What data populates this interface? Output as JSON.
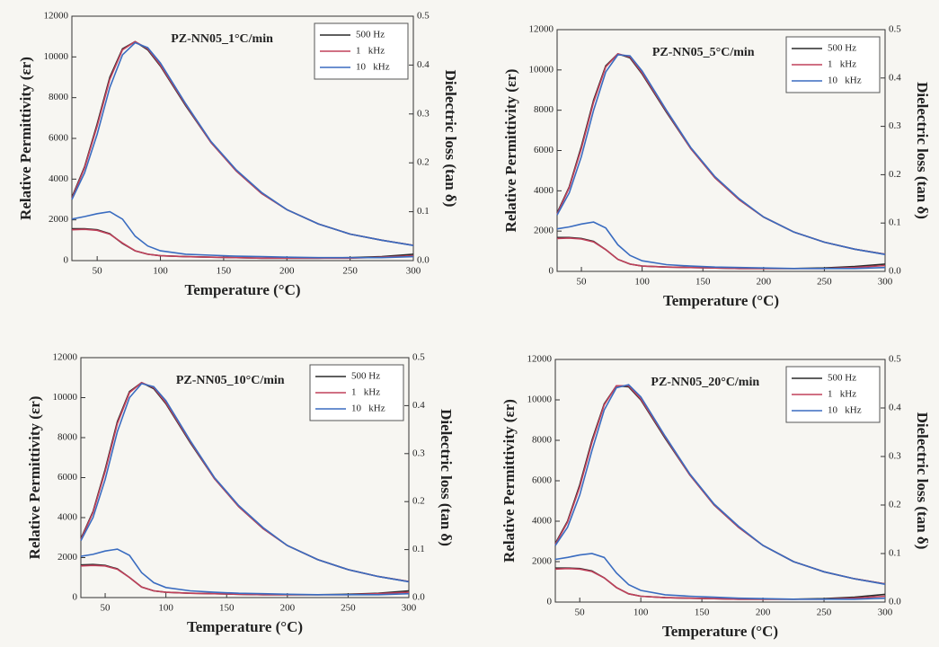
{
  "chart_data": [
    {
      "type": "line",
      "title": "PZ-NN05_1°C/min",
      "xlabel": "Temperature (°C)",
      "ylabel": "Relative Permittivity (εr)",
      "y2label": "Dielectric loss (tan δ)",
      "x": [
        30,
        40,
        50,
        60,
        70,
        80,
        90,
        100,
        120,
        140,
        160,
        180,
        200,
        225,
        250,
        275,
        300
      ],
      "xlim": [
        30,
        300
      ],
      "xticks": [
        50,
        100,
        150,
        200,
        250,
        300
      ],
      "ylim": [
        0,
        12000
      ],
      "yticks": [
        0,
        2000,
        4000,
        6000,
        8000,
        10000,
        12000
      ],
      "y2lim": [
        0,
        0.5
      ],
      "y2ticks": [
        {
          "value": 0,
          "label": "0.0"
        },
        0.1,
        0.2,
        0.3,
        0.4,
        0.5
      ],
      "legend": "top-right",
      "series": [
        {
          "name": "500 Hz",
          "color": "#2a2a2a",
          "values": [
            3100,
            4600,
            6700,
            9000,
            10400,
            10750,
            10350,
            9550,
            7600,
            5800,
            4400,
            3300,
            2500,
            1800,
            1300,
            1000,
            750
          ],
          "loss_values": [
            0.065,
            0.065,
            0.063,
            0.055,
            0.035,
            0.02,
            0.013,
            0.01,
            0.008,
            0.007,
            0.006,
            0.005,
            0.005,
            0.005,
            0.006,
            0.008,
            0.013
          ]
        },
        {
          "name": "1   kHz",
          "color": "#c0405a",
          "values": [
            3050,
            4550,
            6600,
            8900,
            10350,
            10750,
            10400,
            9600,
            7650,
            5800,
            4400,
            3300,
            2500,
            1800,
            1300,
            1000,
            750
          ],
          "loss_values": [
            0.063,
            0.064,
            0.062,
            0.054,
            0.036,
            0.02,
            0.013,
            0.01,
            0.008,
            0.007,
            0.006,
            0.005,
            0.005,
            0.005,
            0.005,
            0.007,
            0.01
          ]
        },
        {
          "name": "10   kHz",
          "color": "#3a6cc0",
          "values": [
            3000,
            4300,
            6200,
            8500,
            10100,
            10700,
            10450,
            9700,
            7700,
            5850,
            4450,
            3350,
            2500,
            1800,
            1300,
            1000,
            740
          ],
          "loss_values": [
            0.085,
            0.09,
            0.096,
            0.1,
            0.085,
            0.05,
            0.03,
            0.02,
            0.013,
            0.011,
            0.009,
            0.008,
            0.007,
            0.006,
            0.006,
            0.006,
            0.008
          ]
        }
      ]
    },
    {
      "type": "line",
      "title": "PZ-NN05_5°C/min",
      "xlabel": "Temperature (°C)",
      "ylabel": "Relative Permittivity (εr)",
      "y2label": "Dielectric loss (tan δ)",
      "x": [
        30,
        40,
        50,
        60,
        70,
        80,
        90,
        100,
        120,
        140,
        160,
        180,
        200,
        225,
        250,
        275,
        300
      ],
      "xlim": [
        30,
        300
      ],
      "xticks": [
        50,
        100,
        150,
        200,
        250,
        300
      ],
      "ylim": [
        0,
        12000
      ],
      "yticks": [
        0,
        2000,
        4000,
        6000,
        8000,
        10000,
        12000
      ],
      "y2lim": [
        0,
        0.5
      ],
      "y2ticks": [
        {
          "value": 0,
          "label": "0.0"
        },
        0.1,
        0.2,
        0.3,
        0.4,
        0.5
      ],
      "legend": "top-right",
      "series": [
        {
          "name": "500 Hz",
          "color": "#2a2a2a",
          "values": [
            2900,
            4200,
            6200,
            8500,
            10200,
            10800,
            10600,
            9800,
            7900,
            6100,
            4650,
            3550,
            2700,
            1950,
            1450,
            1100,
            850
          ],
          "loss_values": [
            0.07,
            0.07,
            0.068,
            0.062,
            0.045,
            0.025,
            0.015,
            0.011,
            0.009,
            0.008,
            0.007,
            0.006,
            0.006,
            0.006,
            0.007,
            0.01,
            0.015
          ]
        },
        {
          "name": "1   kHz",
          "color": "#c0405a",
          "values": [
            2850,
            4150,
            6100,
            8400,
            10150,
            10800,
            10650,
            9850,
            7950,
            6100,
            4650,
            3550,
            2700,
            1950,
            1450,
            1100,
            850
          ],
          "loss_values": [
            0.068,
            0.069,
            0.067,
            0.061,
            0.045,
            0.025,
            0.015,
            0.011,
            0.009,
            0.008,
            0.007,
            0.006,
            0.006,
            0.006,
            0.006,
            0.008,
            0.012
          ]
        },
        {
          "name": "10   kHz",
          "color": "#3a6cc0",
          "values": [
            2800,
            3900,
            5700,
            8000,
            9900,
            10750,
            10700,
            9950,
            8000,
            6150,
            4700,
            3600,
            2700,
            1950,
            1450,
            1100,
            840
          ],
          "loss_values": [
            0.088,
            0.092,
            0.098,
            0.102,
            0.09,
            0.055,
            0.033,
            0.022,
            0.014,
            0.011,
            0.009,
            0.008,
            0.007,
            0.006,
            0.006,
            0.006,
            0.008
          ]
        }
      ]
    },
    {
      "type": "line",
      "title": "PZ-NN05_10°C/min",
      "xlabel": "Temperature (°C)",
      "ylabel": "Relative Permittivity (εr)",
      "y2label": "Dielectric loss (tan δ)",
      "x": [
        30,
        40,
        50,
        60,
        70,
        80,
        90,
        100,
        120,
        140,
        160,
        180,
        200,
        225,
        250,
        275,
        300
      ],
      "xlim": [
        30,
        300
      ],
      "xticks": [
        50,
        100,
        150,
        200,
        250,
        300
      ],
      "ylim": [
        0,
        12000
      ],
      "yticks": [
        0,
        2000,
        4000,
        6000,
        8000,
        10000,
        12000
      ],
      "y2lim": [
        0,
        0.5
      ],
      "y2ticks": [
        {
          "value": 0,
          "label": "0.0"
        },
        0.1,
        0.2,
        0.3,
        0.4,
        0.5
      ],
      "legend": "top-right",
      "series": [
        {
          "name": "500 Hz",
          "color": "#2a2a2a",
          "values": [
            2950,
            4300,
            6400,
            8800,
            10300,
            10750,
            10450,
            9700,
            7750,
            5950,
            4550,
            3450,
            2600,
            1900,
            1400,
            1050,
            800
          ],
          "loss_values": [
            0.068,
            0.069,
            0.067,
            0.06,
            0.042,
            0.022,
            0.014,
            0.011,
            0.009,
            0.008,
            0.007,
            0.006,
            0.006,
            0.006,
            0.007,
            0.009,
            0.014
          ]
        },
        {
          "name": "1   kHz",
          "color": "#c0405a",
          "values": [
            2900,
            4250,
            6300,
            8700,
            10250,
            10750,
            10500,
            9750,
            7800,
            5950,
            4550,
            3450,
            2600,
            1900,
            1400,
            1050,
            800
          ],
          "loss_values": [
            0.066,
            0.067,
            0.066,
            0.059,
            0.042,
            0.022,
            0.014,
            0.011,
            0.009,
            0.008,
            0.007,
            0.006,
            0.006,
            0.006,
            0.006,
            0.008,
            0.011
          ]
        },
        {
          "name": "10   kHz",
          "color": "#3a6cc0",
          "values": [
            2850,
            4000,
            5900,
            8300,
            10000,
            10700,
            10550,
            9850,
            7850,
            6000,
            4600,
            3500,
            2600,
            1900,
            1400,
            1050,
            790
          ],
          "loss_values": [
            0.086,
            0.09,
            0.097,
            0.101,
            0.088,
            0.052,
            0.031,
            0.021,
            0.014,
            0.011,
            0.009,
            0.008,
            0.007,
            0.006,
            0.006,
            0.006,
            0.008
          ]
        }
      ]
    },
    {
      "type": "line",
      "title": "PZ-NN05_20°C/min",
      "xlabel": "Temperature (°C)",
      "ylabel": "Relative Permittivity (εr)",
      "y2label": "Dielectric loss (tan δ)",
      "x": [
        30,
        40,
        50,
        60,
        70,
        80,
        90,
        100,
        120,
        140,
        160,
        180,
        200,
        225,
        250,
        275,
        300
      ],
      "xlim": [
        30,
        300
      ],
      "xticks": [
        50,
        100,
        150,
        200,
        250,
        300
      ],
      "ylim": [
        0,
        12000
      ],
      "yticks": [
        0,
        2000,
        4000,
        6000,
        8000,
        10000,
        12000
      ],
      "y2lim": [
        0,
        0.5
      ],
      "y2ticks": [
        {
          "value": 0,
          "label": "0.0"
        },
        0.1,
        0.2,
        0.3,
        0.4,
        0.5
      ],
      "legend": "top-right",
      "series": [
        {
          "name": "500 Hz",
          "color": "#2a2a2a",
          "values": [
            2900,
            4000,
            5800,
            8000,
            9800,
            10700,
            10650,
            10000,
            8100,
            6300,
            4800,
            3700,
            2800,
            2000,
            1500,
            1150,
            900
          ],
          "loss_values": [
            0.07,
            0.07,
            0.069,
            0.064,
            0.05,
            0.03,
            0.017,
            0.012,
            0.009,
            0.008,
            0.007,
            0.006,
            0.006,
            0.006,
            0.007,
            0.01,
            0.016
          ]
        },
        {
          "name": "1   kHz",
          "color": "#c0405a",
          "values": [
            2850,
            3950,
            5700,
            7900,
            9750,
            10700,
            10700,
            10050,
            8150,
            6300,
            4800,
            3700,
            2800,
            2000,
            1500,
            1150,
            900
          ],
          "loss_values": [
            0.068,
            0.069,
            0.068,
            0.063,
            0.05,
            0.03,
            0.017,
            0.012,
            0.009,
            0.008,
            0.007,
            0.006,
            0.006,
            0.006,
            0.006,
            0.008,
            0.012
          ]
        },
        {
          "name": "10   kHz",
          "color": "#3a6cc0",
          "values": [
            2800,
            3700,
            5300,
            7500,
            9500,
            10600,
            10750,
            10150,
            8200,
            6350,
            4850,
            3750,
            2800,
            2000,
            1500,
            1150,
            880
          ],
          "loss_values": [
            0.088,
            0.092,
            0.097,
            0.1,
            0.092,
            0.06,
            0.036,
            0.024,
            0.015,
            0.012,
            0.01,
            0.008,
            0.007,
            0.006,
            0.006,
            0.006,
            0.008
          ]
        }
      ]
    }
  ]
}
